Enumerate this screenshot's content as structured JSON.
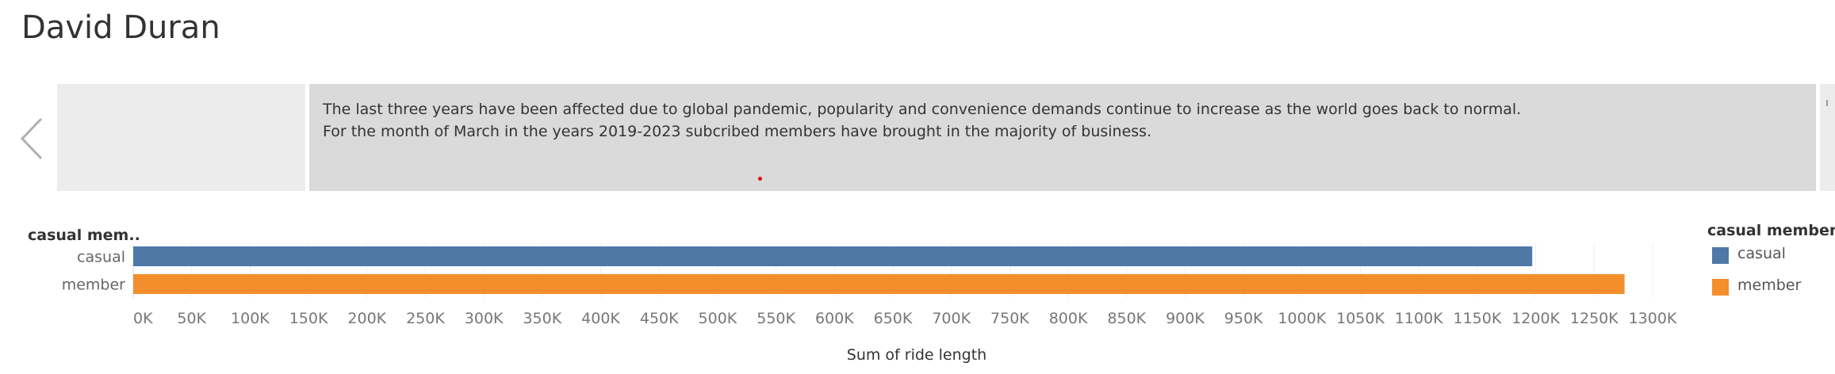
{
  "page": {
    "title": "David Duran"
  },
  "story": {
    "current_text_line1": "The last three years have been affected due to global pandemic, popularity and convenience demands continue to increase as the world goes back to normal.",
    "current_text_line2": "For the month of March in the years 2019-2023 subcribed members have brought in the majority of business."
  },
  "colors": {
    "casual": "#4e79a7",
    "member": "#f28e2b"
  },
  "legend": {
    "title": "casual members",
    "items": [
      "casual",
      "member"
    ]
  },
  "chart_data": {
    "type": "bar",
    "orientation": "horizontal",
    "row_header": "casual mem..",
    "categories": [
      "casual",
      "member"
    ],
    "values": [
      1197000,
      1276000
    ],
    "xlabel": "Sum of ride length",
    "ylabel": "casual mem..",
    "xlim": [
      0,
      1300000
    ],
    "x_ticks": [
      0,
      50000,
      100000,
      150000,
      200000,
      250000,
      300000,
      350000,
      400000,
      450000,
      500000,
      550000,
      600000,
      650000,
      700000,
      750000,
      800000,
      850000,
      900000,
      950000,
      1000000,
      1050000,
      1100000,
      1150000,
      1200000,
      1250000,
      1300000
    ],
    "x_tick_labels": [
      "0K",
      "50K",
      "100K",
      "150K",
      "200K",
      "250K",
      "300K",
      "350K",
      "400K",
      "450K",
      "500K",
      "550K",
      "600K",
      "650K",
      "700K",
      "750K",
      "800K",
      "850K",
      "900K",
      "950K",
      "1000K",
      "1050K",
      "1100K",
      "1150K",
      "1200K",
      "1250K",
      "1300K"
    ],
    "gridlines": true,
    "legend_position": "right"
  }
}
